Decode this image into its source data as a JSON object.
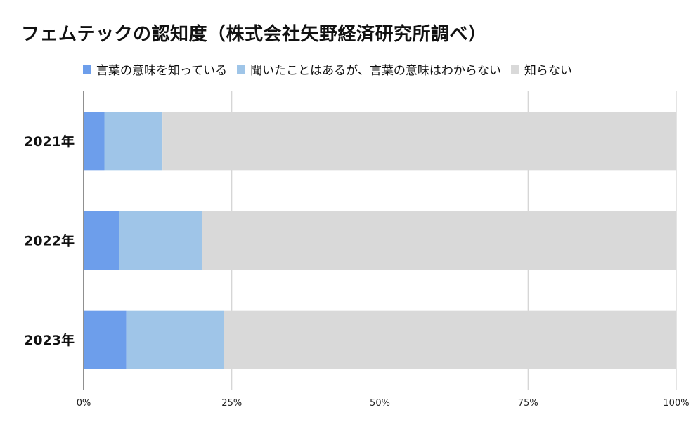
{
  "chart_data": {
    "type": "bar",
    "orientation": "horizontal",
    "stacked": true,
    "percent_stacked": true,
    "title": "フェムテックの認知度（株式会社矢野経済研究所調べ）",
    "categories": [
      "2021年",
      "2022年",
      "2023年"
    ],
    "series": [
      {
        "name": "言葉の意味を知っている",
        "values": [
          3.5,
          6,
          7.2
        ],
        "color": "#6d9eeb"
      },
      {
        "name": "聞いたことはあるが、言葉の意味はわからない",
        "values": [
          9.8,
          14,
          16.5
        ],
        "color": "#9fc5e8"
      },
      {
        "name": "知らない",
        "values": [
          86.7,
          80,
          76.3
        ],
        "color": "#d9d9d9"
      }
    ],
    "xlim": [
      0,
      100
    ],
    "xticks": [
      "0%",
      "25%",
      "50%",
      "75%",
      "100%"
    ],
    "grid": true,
    "legend_position": "top"
  }
}
